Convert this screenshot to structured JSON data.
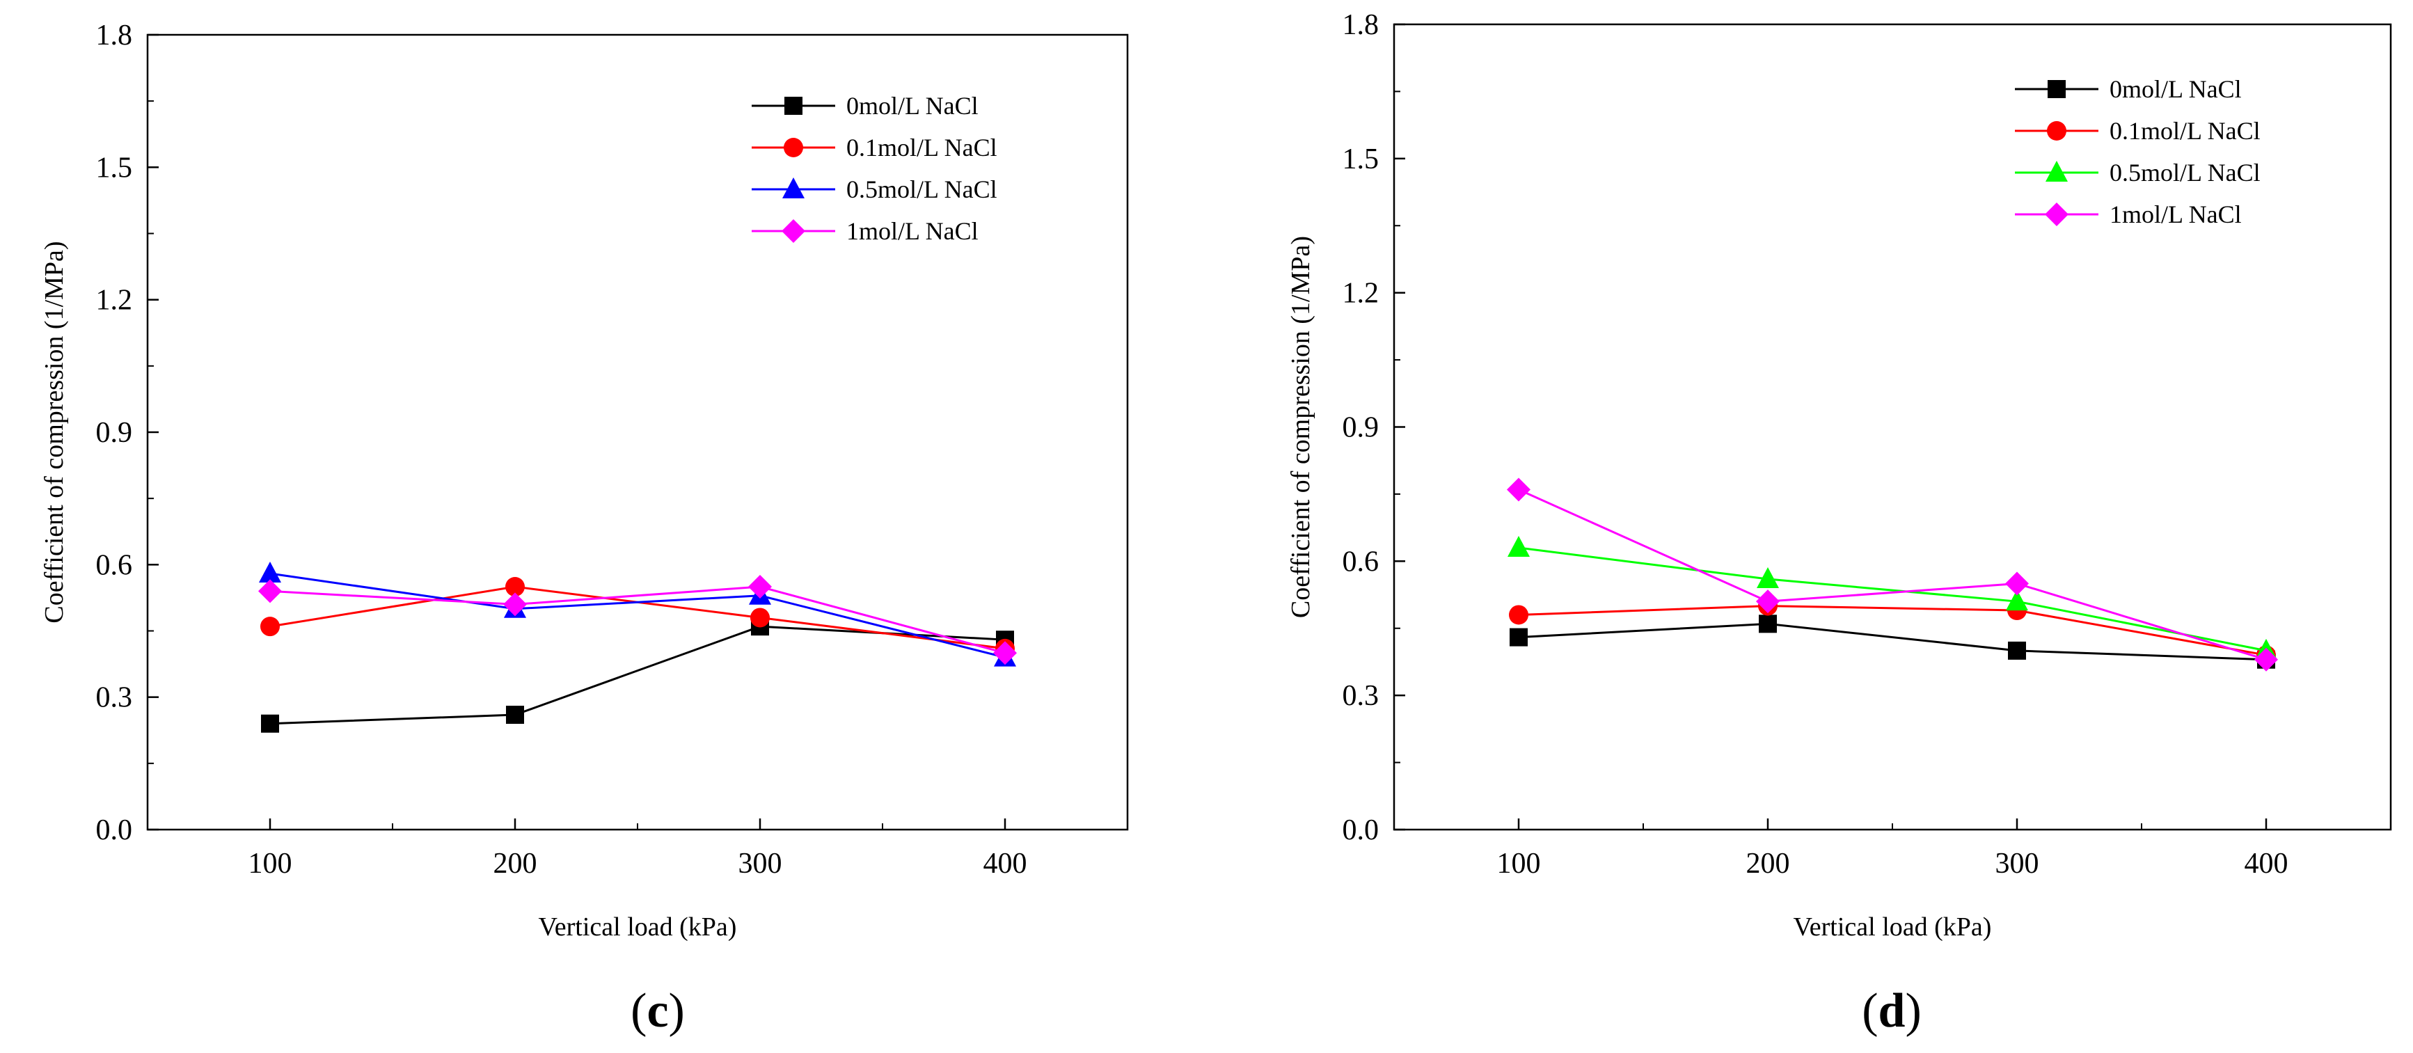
{
  "chart_data": [
    {
      "type": "line",
      "panel_label": "c",
      "x": [
        100,
        200,
        300,
        400
      ],
      "xlabel": "Vertical load (kPa)",
      "ylabel": "Coefficient of compression (1/MPa)",
      "xlim": [
        50,
        450
      ],
      "ylim": [
        0.0,
        1.8
      ],
      "xticks": [
        100,
        200,
        300,
        400
      ],
      "yticks": [
        "0.0",
        "0.3",
        "0.6",
        "0.9",
        "1.2",
        "1.5",
        "1.8"
      ],
      "legend_position": "top-right",
      "series": [
        {
          "name": "0mol/L NaCl",
          "color": "#000000",
          "marker": "square",
          "values": [
            0.24,
            0.26,
            0.46,
            0.43
          ]
        },
        {
          "name": "0.1mol/L NaCl",
          "color": "#ff0000",
          "marker": "circle",
          "values": [
            0.46,
            0.55,
            0.48,
            0.41
          ]
        },
        {
          "name": "0.5mol/L NaCl",
          "color": "#0000ff",
          "marker": "triangle",
          "values": [
            0.58,
            0.5,
            0.53,
            0.39
          ]
        },
        {
          "name": "1mol/L NaCl",
          "color": "#ff00ff",
          "marker": "diamond",
          "values": [
            0.54,
            0.51,
            0.55,
            0.4
          ]
        }
      ]
    },
    {
      "type": "line",
      "panel_label": "d",
      "x": [
        100,
        200,
        300,
        400
      ],
      "xlabel": "Vertical load (kPa)",
      "ylabel": "Coefficient of compression (1/MPa)",
      "xlim": [
        50,
        450
      ],
      "ylim": [
        0.0,
        1.8
      ],
      "xticks": [
        100,
        200,
        300,
        400
      ],
      "yticks": [
        "0.0",
        "0.3",
        "0.6",
        "0.9",
        "1.2",
        "1.5",
        "1.8"
      ],
      "legend_position": "top-right",
      "series": [
        {
          "name": "0mol/L NaCl",
          "color": "#000000",
          "marker": "square",
          "values": [
            0.43,
            0.46,
            0.4,
            0.38
          ]
        },
        {
          "name": "0.1mol/L NaCl",
          "color": "#ff0000",
          "marker": "circle",
          "values": [
            0.48,
            0.5,
            0.49,
            0.39
          ]
        },
        {
          "name": "0.5mol/L NaCl",
          "color": "#00ff00",
          "marker": "triangle",
          "values": [
            0.63,
            0.56,
            0.51,
            0.4
          ]
        },
        {
          "name": "1mol/L NaCl",
          "color": "#ff00ff",
          "marker": "diamond",
          "values": [
            0.76,
            0.51,
            0.55,
            0.38
          ]
        }
      ]
    }
  ]
}
